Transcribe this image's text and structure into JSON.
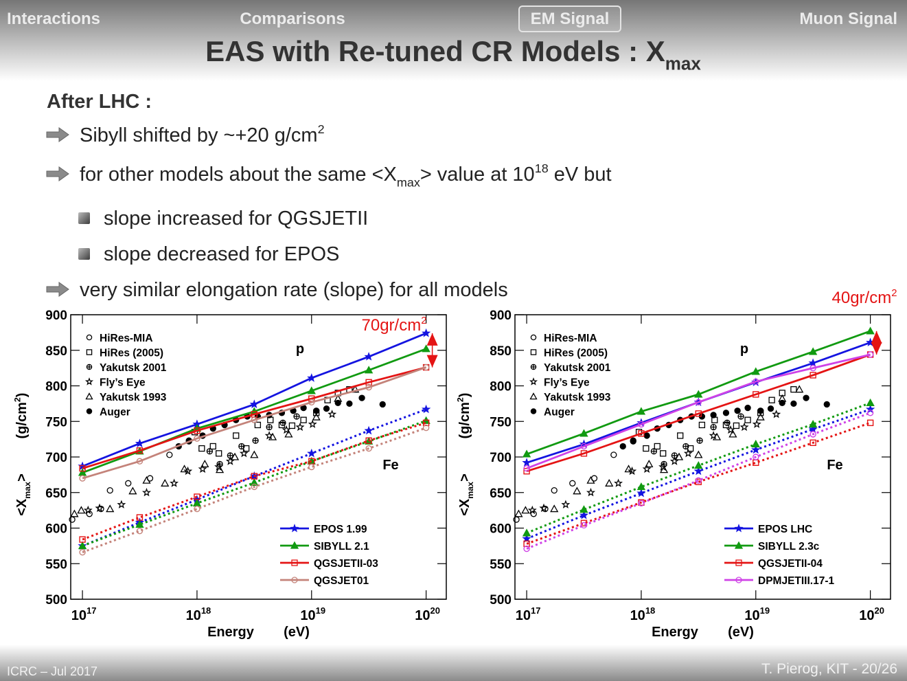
{
  "nav": {
    "items": [
      "Interactions",
      "Comparisons",
      "EM Signal",
      "Muon Signal"
    ],
    "active": 2
  },
  "slide": {
    "title": [
      {
        "text": "EAS with Re-tuned CR Models : X"
      },
      {
        "sub": "max"
      }
    ],
    "heading": "After LHC :",
    "bullets": [
      {
        "level": 1,
        "parts": [
          {
            "text": "Sibyll shifted by ~+20 g/cm"
          },
          {
            "sup": "2"
          }
        ]
      },
      {
        "level": 1,
        "parts": [
          {
            "text": "for other models about the same <X"
          },
          {
            "sub": "max"
          },
          {
            "text": "> value at 10"
          },
          {
            "sup": "18"
          },
          {
            "text": " eV but"
          }
        ]
      },
      {
        "level": 2,
        "parts": [
          {
            "text": "slope increased for QGSJETII"
          }
        ]
      },
      {
        "level": 2,
        "parts": [
          {
            "text": "slope decreased for EPOS"
          }
        ]
      },
      {
        "level": 1,
        "parts": [
          {
            "text": "very similar elongation rate (slope) for all models"
          }
        ]
      }
    ]
  },
  "footer": {
    "left": "ICRC – Jul 2017",
    "right": "T. Pierog, KIT - 20/26"
  },
  "chart_data": [
    {
      "type": "line",
      "log_x": true,
      "xlim": [
        7.9e+16,
        1.5e+20
      ],
      "xticks": [
        {
          "value": 1e+17,
          "label": "10",
          "sup": "17"
        },
        {
          "value": 1e+18,
          "label": "10",
          "sup": "18"
        },
        {
          "value": 1e+19,
          "label": "10",
          "sup": "19"
        },
        {
          "value": 1e+20,
          "label": "10",
          "sup": "20"
        }
      ],
      "ylim": [
        500,
        900
      ],
      "yticks": [
        500,
        550,
        600,
        650,
        700,
        750,
        800,
        850,
        900
      ],
      "xlabel": [
        "Energy",
        "(eV)"
      ],
      "ylabel": [
        [
          {
            "text": "<X"
          },
          {
            "sub": "max"
          },
          {
            "text": ">"
          }
        ],
        [
          {
            "text": "(g/cm"
          },
          {
            "sup": "2"
          },
          {
            "text": ")"
          }
        ]
      ],
      "annotation": [
        {
          "text": "70gr/cm"
        },
        {
          "sup": "2"
        }
      ],
      "labels": [
        "p",
        "Fe"
      ],
      "x": [
        1e+17,
        3.16e+17,
        1e+18,
        3.16e+18,
        1e+19,
        3.16e+19,
        1e+20
      ],
      "series": [
        {
          "name": "EPOS 1.99",
          "color": "#1414e0",
          "marker": "star",
          "proton": [
            687,
            719,
            746,
            774,
            811,
            841,
            874
          ],
          "iron": [
            575,
            608,
            640,
            673,
            705,
            737,
            767
          ]
        },
        {
          "name": "SIBYLL 2.1",
          "color": "#119a11",
          "marker": "triangle",
          "proton": [
            678,
            708,
            740,
            764,
            793,
            822,
            852
          ],
          "iron": [
            575,
            605,
            635,
            664,
            694,
            722,
            751
          ]
        },
        {
          "name": "QGSJETII-03",
          "color": "#e41414",
          "marker": "square",
          "proton": [
            684,
            709,
            737,
            760,
            782,
            805,
            826
          ],
          "iron": [
            584,
            615,
            644,
            673,
            694,
            723,
            748
          ]
        },
        {
          "name": "QGSJET01",
          "color": "#c4837a",
          "marker": "circle",
          "proton": [
            670,
            694,
            726,
            752,
            777,
            798,
            826
          ],
          "iron": [
            566,
            596,
            627,
            658,
            686,
            712,
            741
          ]
        }
      ],
      "data_sets": [
        {
          "name": "HiRes-MIA",
          "marker": "circle",
          "x": [
            8.13e+16,
            1.15e+17,
            1.45e+17,
            1.74e+17,
            2.51e+17,
            3.89e+17,
            5.75e+17,
            8.51e+17
          ],
          "values": [
            612,
            620,
            627,
            653,
            663,
            670,
            703,
            722
          ]
        },
        {
          "name": "HiRes (2005)",
          "marker": "square",
          "x": [
            9.55e+17,
            1.1e+18,
            1.38e+18,
            1.55e+18,
            2.19e+18,
            2.69e+18,
            3.39e+18,
            4.37e+18,
            5.5e+18,
            6.76e+18,
            8.51e+18,
            1.1e+19,
            1.38e+19,
            1.7e+19,
            2.14e+19
          ],
          "values": [
            735,
            712,
            715,
            705,
            730,
            712,
            745,
            752,
            745,
            744,
            752,
            762,
            780,
            790,
            795
          ]
        },
        {
          "name": "Yakutsk 2001",
          "marker": "cross-circle",
          "x": [
            1.29e+18,
            1.58e+18,
            1.95e+18,
            2.45e+18,
            3.24e+18,
            4.27e+18,
            5.62e+18,
            7.41e+18
          ],
          "values": [
            708,
            690,
            702,
            715,
            723,
            742,
            748,
            757
          ]
        },
        {
          "name": "Fly’s Eye",
          "marker": "star",
          "x": [
            1.12e+17,
            1.41e+17,
            2.19e+17,
            3.63e+17,
            6.31e+17,
            8.32e+17,
            1.12e+18,
            1.55e+18,
            1.95e+18,
            2.57e+18,
            4.27e+18,
            6.03e+18,
            7.94e+18,
            1.02e+19,
            1.51e+19
          ],
          "values": [
            625,
            628,
            633,
            650,
            663,
            680,
            683,
            686,
            694,
            705,
            730,
            738,
            742,
            746,
            760
          ]
        },
        {
          "name": "Yakutsk 1993",
          "marker": "triangle",
          "x": [
            8.51e+16,
            9.77e+16,
            1.74e+17,
            2.75e+17,
            3.63e+17,
            5.25e+17,
            7.76e+17,
            1.17e+18,
            1.58e+18,
            2.14e+18,
            3.16e+18,
            4.57e+18,
            6.31e+18,
            1.1e+19,
            1.7e+19,
            2.4e+19
          ],
          "values": [
            620,
            625,
            627,
            652,
            667,
            663,
            683,
            690,
            682,
            700,
            703,
            728,
            732,
            756,
            782,
            795
          ]
        },
        {
          "name": "Auger",
          "marker": "dot",
          "x": [
            6.92e+17,
            8.51e+17,
            1.12e+18,
            1.38e+18,
            1.74e+18,
            2.19e+18,
            2.75e+18,
            3.39e+18,
            4.27e+18,
            5.5e+18,
            6.92e+18,
            8.51e+18,
            1.1e+19,
            1.35e+19,
            1.7e+19,
            2.14e+19,
            2.75e+19,
            4.17e+19
          ],
          "values": [
            715,
            723,
            730,
            740,
            745,
            752,
            757,
            757,
            759,
            762,
            765,
            769,
            765,
            768,
            776,
            775,
            783,
            774
          ]
        }
      ]
    },
    {
      "type": "line",
      "log_x": true,
      "xlim": [
        7.9e+16,
        1.5e+20
      ],
      "xticks": [
        {
          "value": 1e+17,
          "label": "10",
          "sup": "17"
        },
        {
          "value": 1e+18,
          "label": "10",
          "sup": "18"
        },
        {
          "value": 1e+19,
          "label": "10",
          "sup": "19"
        },
        {
          "value": 1e+20,
          "label": "10",
          "sup": "20"
        }
      ],
      "ylim": [
        500,
        900
      ],
      "yticks": [
        500,
        550,
        600,
        650,
        700,
        750,
        800,
        850,
        900
      ],
      "xlabel": [
        "Energy",
        "(eV)"
      ],
      "ylabel": [
        [
          {
            "text": "<X"
          },
          {
            "sub": "max"
          },
          {
            "text": ">"
          }
        ],
        [
          {
            "text": "(g/cm"
          },
          {
            "sup": "2"
          },
          {
            "text": ")"
          }
        ]
      ],
      "annotation": [
        {
          "text": "40gr/cm"
        },
        {
          "sup": "2"
        }
      ],
      "labels": [
        "p",
        "Fe"
      ],
      "x": [
        1e+17,
        3.16e+17,
        1e+18,
        3.16e+18,
        1e+19,
        3.16e+19,
        1e+20
      ],
      "series": [
        {
          "name": "EPOS LHC",
          "color": "#1414e0",
          "marker": "star",
          "proton": [
            692,
            718,
            748,
            777,
            805,
            832,
            861
          ],
          "iron": [
            585,
            618,
            649,
            680,
            710,
            739,
            767
          ]
        },
        {
          "name": "SIBYLL 2.3c",
          "color": "#119a11",
          "marker": "triangle",
          "proton": [
            704,
            733,
            764,
            788,
            820,
            848,
            877
          ],
          "iron": [
            593,
            626,
            658,
            688,
            718,
            746,
            776
          ]
        },
        {
          "name": "QGSJETII-04",
          "color": "#e41414",
          "marker": "square",
          "proton": [
            680,
            705,
            733,
            761,
            788,
            815,
            844
          ],
          "iron": [
            578,
            607,
            636,
            665,
            692,
            720,
            748
          ]
        },
        {
          "name": "DPMJETIII.17-1",
          "color": "#cf42e6",
          "marker": "circle",
          "proton": [
            684,
            715,
            746,
            777,
            806,
            825,
            844
          ],
          "iron": [
            571,
            604,
            635,
            667,
            700,
            732,
            762
          ]
        }
      ],
      "data_sets": [
        {
          "name": "HiRes-MIA",
          "marker": "circle",
          "x": [
            8.13e+16,
            1.15e+17,
            1.45e+17,
            1.74e+17,
            2.51e+17,
            3.89e+17,
            5.75e+17,
            8.51e+17
          ],
          "values": [
            612,
            620,
            627,
            653,
            663,
            670,
            703,
            722
          ]
        },
        {
          "name": "HiRes (2005)",
          "marker": "square",
          "x": [
            9.55e+17,
            1.1e+18,
            1.38e+18,
            1.55e+18,
            2.19e+18,
            2.69e+18,
            3.39e+18,
            4.37e+18,
            5.5e+18,
            6.76e+18,
            8.51e+18,
            1.1e+19,
            1.38e+19,
            1.7e+19,
            2.14e+19
          ],
          "values": [
            735,
            712,
            715,
            705,
            730,
            712,
            745,
            752,
            745,
            744,
            752,
            762,
            780,
            790,
            795
          ]
        },
        {
          "name": "Yakutsk 2001",
          "marker": "cross-circle",
          "x": [
            1.29e+18,
            1.58e+18,
            1.95e+18,
            2.45e+18,
            3.24e+18,
            4.27e+18,
            5.62e+18,
            7.41e+18
          ],
          "values": [
            708,
            690,
            702,
            715,
            723,
            742,
            748,
            757
          ]
        },
        {
          "name": "Fly’s Eye",
          "marker": "star",
          "x": [
            1.12e+17,
            1.41e+17,
            2.19e+17,
            3.63e+17,
            6.31e+17,
            8.32e+17,
            1.12e+18,
            1.55e+18,
            1.95e+18,
            2.57e+18,
            4.27e+18,
            6.03e+18,
            7.94e+18,
            1.02e+19,
            1.51e+19
          ],
          "values": [
            625,
            628,
            633,
            650,
            663,
            680,
            683,
            686,
            694,
            705,
            730,
            738,
            742,
            746,
            760
          ]
        },
        {
          "name": "Yakutsk 1993",
          "marker": "triangle",
          "x": [
            8.51e+16,
            9.77e+16,
            1.74e+17,
            2.75e+17,
            3.63e+17,
            5.25e+17,
            7.76e+17,
            1.17e+18,
            1.58e+18,
            2.14e+18,
            3.16e+18,
            4.57e+18,
            6.31e+18,
            1.1e+19,
            1.7e+19,
            2.4e+19
          ],
          "values": [
            620,
            625,
            627,
            652,
            667,
            663,
            683,
            690,
            682,
            700,
            703,
            728,
            732,
            756,
            782,
            795
          ]
        },
        {
          "name": "Auger",
          "marker": "dot",
          "x": [
            6.92e+17,
            8.51e+17,
            1.12e+18,
            1.38e+18,
            1.74e+18,
            2.19e+18,
            2.75e+18,
            3.39e+18,
            4.27e+18,
            5.5e+18,
            6.92e+18,
            8.51e+18,
            1.1e+19,
            1.35e+19,
            1.7e+19,
            2.14e+19,
            2.75e+19,
            4.17e+19
          ],
          "values": [
            715,
            723,
            730,
            740,
            745,
            752,
            757,
            757,
            759,
            762,
            765,
            769,
            765,
            768,
            776,
            775,
            783,
            774
          ]
        }
      ]
    }
  ]
}
